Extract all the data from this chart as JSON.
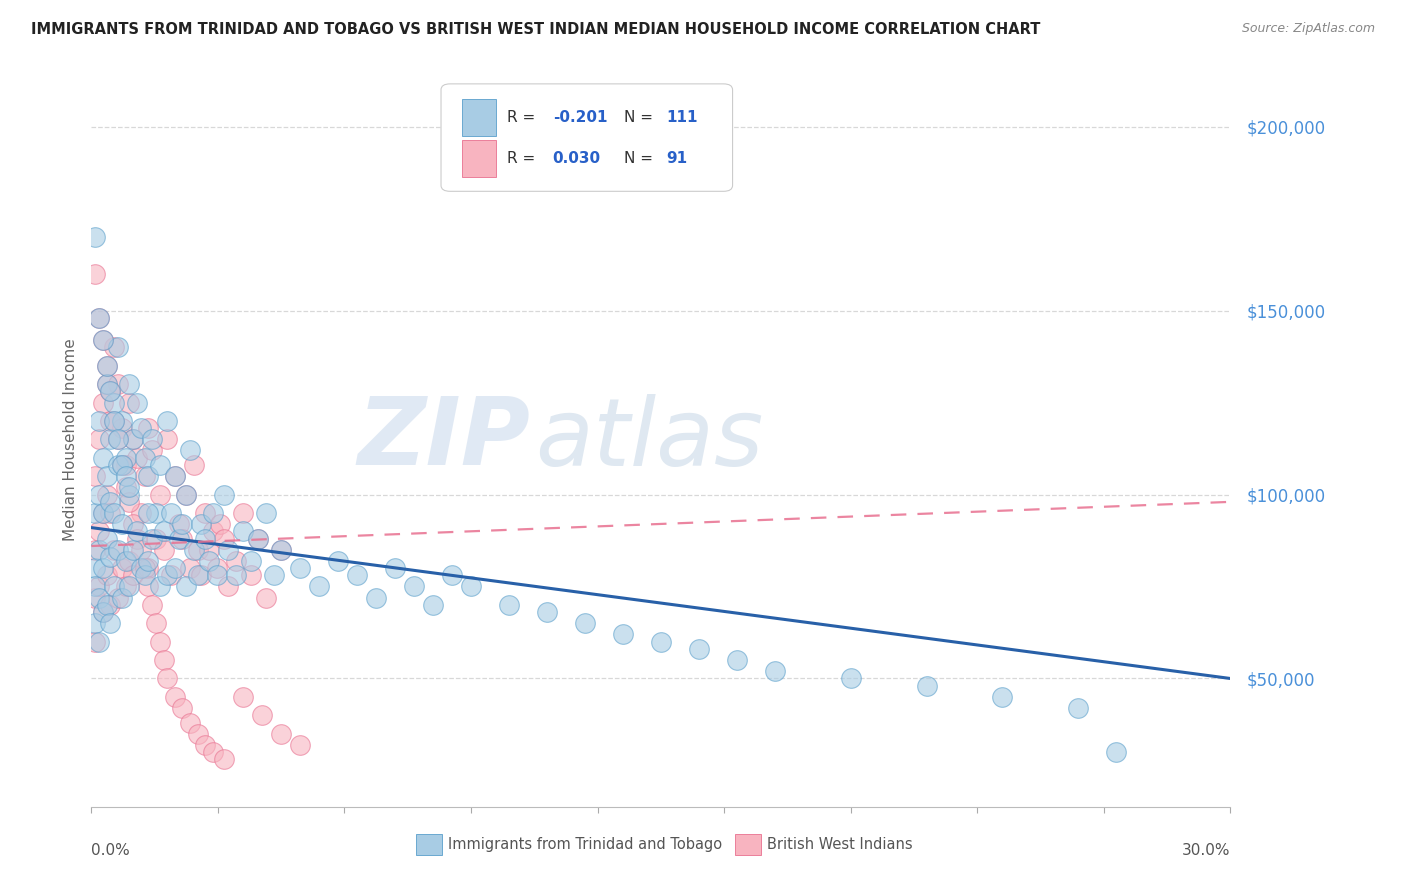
{
  "title": "IMMIGRANTS FROM TRINIDAD AND TOBAGO VS BRITISH WEST INDIAN MEDIAN HOUSEHOLD INCOME CORRELATION CHART",
  "source": "Source: ZipAtlas.com",
  "ylabel": "Median Household Income",
  "xmin": 0.0,
  "xmax": 0.3,
  "ymin": 15000,
  "ymax": 215000,
  "yticks": [
    50000,
    100000,
    150000,
    200000
  ],
  "ytick_labels": [
    "$50,000",
    "$100,000",
    "$150,000",
    "$200,000"
  ],
  "blue_fill": "#a8cce4",
  "blue_edge": "#5a9fcb",
  "pink_fill": "#f8b4c0",
  "pink_edge": "#e87090",
  "trend_blue": "#2860a8",
  "trend_pink": "#e87090",
  "grid_color": "#d8d8d8",
  "legend_box_edge": "#cccccc",
  "watermark_zip_color": "#c8d8ec",
  "watermark_atlas_color": "#b8cce0",
  "r_blue_text": "-0.201",
  "n_blue_text": "111",
  "r_pink_text": "0.030",
  "n_pink_text": "91",
  "trend_blue_x0": 0.0,
  "trend_blue_y0": 91000,
  "trend_blue_x1": 0.3,
  "trend_blue_y1": 50000,
  "trend_pink_x0": 0.0,
  "trend_pink_y0": 86000,
  "trend_pink_x1": 0.3,
  "trend_pink_y1": 98000,
  "blue_scatter_x": [
    0.001,
    0.001,
    0.001,
    0.001,
    0.002,
    0.002,
    0.002,
    0.002,
    0.002,
    0.003,
    0.003,
    0.003,
    0.003,
    0.004,
    0.004,
    0.004,
    0.004,
    0.005,
    0.005,
    0.005,
    0.005,
    0.006,
    0.006,
    0.006,
    0.007,
    0.007,
    0.007,
    0.008,
    0.008,
    0.008,
    0.009,
    0.009,
    0.01,
    0.01,
    0.01,
    0.011,
    0.011,
    0.012,
    0.012,
    0.013,
    0.013,
    0.014,
    0.014,
    0.015,
    0.015,
    0.016,
    0.016,
    0.017,
    0.018,
    0.018,
    0.019,
    0.02,
    0.02,
    0.021,
    0.022,
    0.022,
    0.023,
    0.024,
    0.025,
    0.025,
    0.026,
    0.027,
    0.028,
    0.029,
    0.03,
    0.031,
    0.032,
    0.033,
    0.035,
    0.036,
    0.038,
    0.04,
    0.042,
    0.044,
    0.046,
    0.048,
    0.05,
    0.055,
    0.06,
    0.065,
    0.07,
    0.075,
    0.08,
    0.085,
    0.09,
    0.095,
    0.1,
    0.11,
    0.12,
    0.13,
    0.14,
    0.15,
    0.16,
    0.17,
    0.18,
    0.2,
    0.22,
    0.24,
    0.26,
    0.27,
    0.001,
    0.002,
    0.003,
    0.004,
    0.005,
    0.006,
    0.007,
    0.008,
    0.009,
    0.01,
    0.015
  ],
  "blue_scatter_y": [
    95000,
    80000,
    75000,
    65000,
    120000,
    100000,
    85000,
    72000,
    60000,
    110000,
    95000,
    80000,
    68000,
    130000,
    105000,
    88000,
    70000,
    115000,
    98000,
    83000,
    65000,
    125000,
    95000,
    75000,
    140000,
    108000,
    85000,
    120000,
    92000,
    72000,
    110000,
    82000,
    130000,
    100000,
    75000,
    115000,
    85000,
    125000,
    90000,
    118000,
    80000,
    110000,
    78000,
    105000,
    82000,
    115000,
    88000,
    95000,
    108000,
    75000,
    90000,
    120000,
    78000,
    95000,
    105000,
    80000,
    88000,
    92000,
    100000,
    75000,
    112000,
    85000,
    78000,
    92000,
    88000,
    82000,
    95000,
    78000,
    100000,
    85000,
    78000,
    90000,
    82000,
    88000,
    95000,
    78000,
    85000,
    80000,
    75000,
    82000,
    78000,
    72000,
    80000,
    75000,
    70000,
    78000,
    75000,
    70000,
    68000,
    65000,
    62000,
    60000,
    58000,
    55000,
    52000,
    50000,
    48000,
    45000,
    42000,
    30000,
    170000,
    148000,
    142000,
    135000,
    128000,
    120000,
    115000,
    108000,
    105000,
    102000,
    95000
  ],
  "pink_scatter_x": [
    0.001,
    0.001,
    0.001,
    0.001,
    0.002,
    0.002,
    0.002,
    0.003,
    0.003,
    0.003,
    0.004,
    0.004,
    0.004,
    0.005,
    0.005,
    0.005,
    0.006,
    0.006,
    0.007,
    0.007,
    0.008,
    0.008,
    0.009,
    0.009,
    0.01,
    0.01,
    0.011,
    0.011,
    0.012,
    0.013,
    0.014,
    0.015,
    0.015,
    0.016,
    0.017,
    0.018,
    0.019,
    0.02,
    0.021,
    0.022,
    0.023,
    0.024,
    0.025,
    0.026,
    0.027,
    0.028,
    0.029,
    0.03,
    0.031,
    0.032,
    0.033,
    0.034,
    0.035,
    0.036,
    0.038,
    0.04,
    0.042,
    0.044,
    0.046,
    0.05,
    0.001,
    0.002,
    0.003,
    0.004,
    0.005,
    0.006,
    0.007,
    0.008,
    0.009,
    0.01,
    0.011,
    0.012,
    0.013,
    0.014,
    0.015,
    0.016,
    0.017,
    0.018,
    0.019,
    0.02,
    0.022,
    0.024,
    0.026,
    0.028,
    0.03,
    0.032,
    0.035,
    0.04,
    0.045,
    0.05,
    0.055
  ],
  "pink_scatter_y": [
    105000,
    85000,
    72000,
    60000,
    115000,
    90000,
    75000,
    125000,
    95000,
    68000,
    130000,
    100000,
    78000,
    120000,
    95000,
    70000,
    140000,
    85000,
    130000,
    72000,
    118000,
    80000,
    108000,
    75000,
    125000,
    82000,
    115000,
    78000,
    110000,
    95000,
    105000,
    118000,
    80000,
    112000,
    88000,
    100000,
    85000,
    115000,
    78000,
    105000,
    92000,
    88000,
    100000,
    80000,
    108000,
    85000,
    78000,
    95000,
    85000,
    90000,
    80000,
    92000,
    88000,
    75000,
    82000,
    95000,
    78000,
    88000,
    72000,
    85000,
    160000,
    148000,
    142000,
    135000,
    128000,
    120000,
    115000,
    108000,
    102000,
    98000,
    92000,
    88000,
    85000,
    80000,
    75000,
    70000,
    65000,
    60000,
    55000,
    50000,
    45000,
    42000,
    38000,
    35000,
    32000,
    30000,
    28000,
    45000,
    40000,
    35000,
    32000
  ]
}
